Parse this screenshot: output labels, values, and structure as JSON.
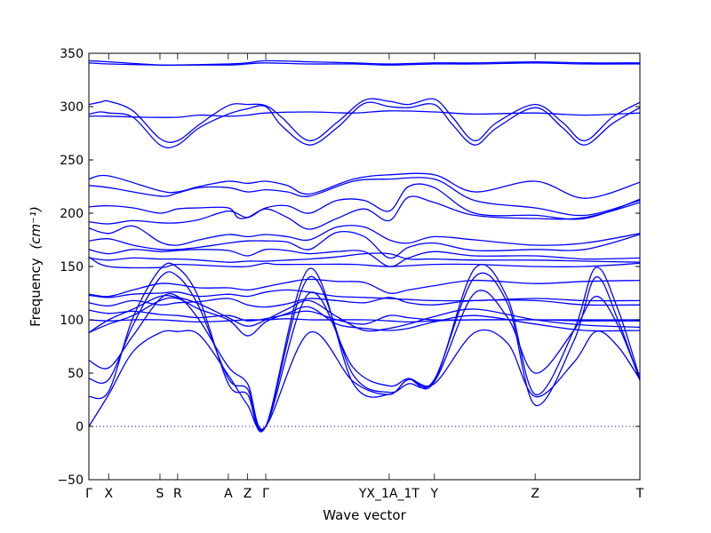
{
  "chart_data": {
    "type": "line",
    "title": "",
    "xlabel": "Wave vector",
    "ylabel": "Frequency",
    "ylabel_unit": "(cm⁻¹)",
    "ylim": [
      -50,
      350
    ],
    "yticks": [
      -50,
      0,
      50,
      100,
      150,
      200,
      250,
      300,
      350
    ],
    "x_range": [
      0,
      1
    ],
    "high_symmetry_points": [
      {
        "label": "Γ",
        "x": 0.0
      },
      {
        "label": "X",
        "x": 0.036
      },
      {
        "label": "S",
        "x": 0.129
      },
      {
        "label": "R",
        "x": 0.161
      },
      {
        "label": "A",
        "x": 0.253
      },
      {
        "label": "Z",
        "x": 0.288
      },
      {
        "label": "Γ",
        "x": 0.321
      },
      {
        "label": "YX_1A_1T",
        "x": 0.545
      },
      {
        "label": "Y",
        "x": 0.627
      },
      {
        "label": "Z",
        "x": 0.81
      },
      {
        "label": "T",
        "x": 1.0
      }
    ],
    "zero_line": {
      "y": 0,
      "style": "dotted"
    },
    "line_color": "#0000ff",
    "grid": false,
    "legend": "none",
    "series": [
      {
        "x": [
          0,
          0.036,
          0.129,
          0.161,
          0.253,
          0.288,
          0.321,
          0.4,
          0.48,
          0.545,
          0.627,
          0.7,
          0.81,
          0.9,
          1.0
        ],
        "values": [
          341,
          340,
          339,
          339,
          340,
          341,
          343,
          342,
          341,
          340,
          341,
          341,
          342,
          341,
          341
        ]
      },
      {
        "x": [
          0,
          0.036,
          0.129,
          0.161,
          0.253,
          0.288,
          0.321,
          0.4,
          0.48,
          0.545,
          0.627,
          0.7,
          0.81,
          0.9,
          1.0
        ],
        "values": [
          343,
          342,
          339,
          339,
          339,
          340,
          341,
          340,
          340,
          339,
          340,
          340,
          341,
          340,
          340
        ]
      },
      {
        "x": [
          0,
          0.02,
          0.036,
          0.08,
          0.129,
          0.161,
          0.2,
          0.253,
          0.288,
          0.321,
          0.35,
          0.4,
          0.45,
          0.5,
          0.545,
          0.58,
          0.627,
          0.66,
          0.7,
          0.74,
          0.81,
          0.86,
          0.9,
          0.95,
          1.0
        ],
        "values": [
          302,
          304,
          305,
          296,
          270,
          268,
          283,
          301,
          302,
          301,
          290,
          268,
          285,
          306,
          305,
          302,
          307,
          290,
          268,
          285,
          302,
          285,
          268,
          290,
          304
        ]
      },
      {
        "x": [
          0,
          0.02,
          0.036,
          0.08,
          0.129,
          0.161,
          0.2,
          0.253,
          0.288,
          0.321,
          0.35,
          0.4,
          0.45,
          0.5,
          0.545,
          0.58,
          0.627,
          0.66,
          0.7,
          0.74,
          0.81,
          0.86,
          0.9,
          0.95,
          1.0
        ],
        "values": [
          293,
          295,
          294,
          290,
          264,
          264,
          280,
          293,
          298,
          300,
          282,
          264,
          280,
          303,
          300,
          299,
          302,
          283,
          264,
          280,
          299,
          280,
          264,
          284,
          299
        ]
      },
      {
        "x": [
          0,
          0.036,
          0.1,
          0.161,
          0.2,
          0.253,
          0.288,
          0.321,
          0.4,
          0.48,
          0.545,
          0.627,
          0.7,
          0.81,
          0.9,
          1.0
        ],
        "values": [
          291,
          291,
          290,
          290,
          292,
          291,
          292,
          294,
          295,
          294,
          296,
          295,
          293,
          294,
          292,
          294
        ]
      },
      {
        "x": [
          0,
          0.036,
          0.129,
          0.161,
          0.2,
          0.253,
          0.288,
          0.321,
          0.36,
          0.4,
          0.48,
          0.545,
          0.627,
          0.7,
          0.81,
          0.9,
          1.0
        ],
        "values": [
          232,
          235,
          221,
          220,
          225,
          230,
          228,
          230,
          226,
          218,
          232,
          236,
          236,
          220,
          230,
          214,
          229
        ]
      },
      {
        "x": [
          0,
          0.036,
          0.129,
          0.161,
          0.2,
          0.253,
          0.288,
          0.321,
          0.36,
          0.4,
          0.48,
          0.545,
          0.627,
          0.7,
          0.81,
          0.9,
          1.0
        ],
        "values": [
          226,
          224,
          216,
          219,
          224,
          224,
          220,
          222,
          220,
          216,
          230,
          232,
          232,
          212,
          205,
          198,
          212
        ]
      },
      {
        "x": [
          0,
          0.036,
          0.08,
          0.129,
          0.161,
          0.2,
          0.253,
          0.27,
          0.288,
          0.321,
          0.36,
          0.4,
          0.45,
          0.5,
          0.545,
          0.58,
          0.627,
          0.7,
          0.81,
          0.9,
          1.0
        ],
        "values": [
          206,
          207,
          205,
          200,
          204,
          205,
          205,
          196,
          196,
          205,
          207,
          200,
          212,
          212,
          202,
          225,
          224,
          200,
          198,
          195,
          213
        ]
      },
      {
        "x": [
          0,
          0.036,
          0.08,
          0.129,
          0.161,
          0.2,
          0.253,
          0.288,
          0.321,
          0.36,
          0.4,
          0.45,
          0.5,
          0.545,
          0.58,
          0.627,
          0.7,
          0.81,
          0.9,
          1.0
        ],
        "values": [
          192,
          190,
          193,
          191,
          191,
          194,
          202,
          196,
          204,
          196,
          185,
          195,
          204,
          193,
          215,
          210,
          198,
          195,
          196,
          210
        ]
      },
      {
        "x": [
          0,
          0.036,
          0.08,
          0.129,
          0.161,
          0.2,
          0.253,
          0.288,
          0.321,
          0.36,
          0.4,
          0.45,
          0.5,
          0.545,
          0.58,
          0.627,
          0.7,
          0.81,
          0.9,
          1.0
        ],
        "values": [
          186,
          181,
          188,
          173,
          170,
          175,
          180,
          178,
          180,
          178,
          175,
          187,
          187,
          175,
          172,
          178,
          175,
          170,
          172,
          181
        ]
      },
      {
        "x": [
          0,
          0.036,
          0.08,
          0.129,
          0.161,
          0.2,
          0.253,
          0.288,
          0.321,
          0.36,
          0.4,
          0.45,
          0.5,
          0.545,
          0.58,
          0.627,
          0.7,
          0.81,
          0.9,
          1.0
        ],
        "values": [
          174,
          176,
          170,
          166,
          166,
          168,
          172,
          174,
          174,
          173,
          166,
          182,
          178,
          158,
          168,
          172,
          165,
          166,
          166,
          180
        ]
      },
      {
        "x": [
          0,
          0.036,
          0.08,
          0.129,
          0.161,
          0.2,
          0.253,
          0.288,
          0.321,
          0.36,
          0.4,
          0.45,
          0.5,
          0.545,
          0.58,
          0.627,
          0.7,
          0.81,
          0.9,
          1.0
        ],
        "values": [
          166,
          162,
          166,
          164,
          165,
          166,
          165,
          160,
          166,
          165,
          162,
          164,
          164,
          150,
          158,
          164,
          160,
          160,
          157,
          158
        ]
      },
      {
        "x": [
          0,
          0.036,
          0.08,
          0.129,
          0.161,
          0.2,
          0.253,
          0.288,
          0.321,
          0.36,
          0.4,
          0.45,
          0.5,
          0.545,
          0.58,
          0.627,
          0.7,
          0.81,
          0.9,
          1.0
        ],
        "values": [
          158,
          156,
          158,
          157,
          157,
          156,
          154,
          155,
          155,
          156,
          157,
          159,
          162,
          162,
          157,
          157,
          156,
          156,
          155,
          154
        ]
      },
      {
        "x": [
          0,
          0.036,
          0.13,
          0.161,
          0.253,
          0.288,
          0.321,
          0.34,
          0.4,
          0.48,
          0.545,
          0.627,
          0.7,
          0.81,
          0.9,
          1.0
        ],
        "values": [
          159,
          150,
          149,
          152,
          150,
          150,
          153,
          152,
          152,
          152,
          150,
          152,
          152,
          150,
          150,
          153
        ]
      },
      {
        "x": [
          0,
          0.036,
          0.08,
          0.129,
          0.161,
          0.2,
          0.253,
          0.288,
          0.321,
          0.36,
          0.4,
          0.45,
          0.5,
          0.545,
          0.58,
          0.627,
          0.7,
          0.81,
          0.9,
          1.0
        ],
        "values": [
          124,
          122,
          128,
          134,
          133,
          130,
          130,
          128,
          131,
          135,
          138,
          136,
          135,
          125,
          128,
          132,
          137,
          134,
          136,
          137
        ]
      },
      {
        "x": [
          0,
          0.036,
          0.08,
          0.129,
          0.161,
          0.2,
          0.253,
          0.288,
          0.321,
          0.36,
          0.4,
          0.45,
          0.5,
          0.545,
          0.58,
          0.627,
          0.7,
          0.81,
          0.9,
          1.0
        ],
        "values": [
          123,
          121,
          124,
          125,
          126,
          122,
          124,
          122,
          126,
          128,
          126,
          122,
          121,
          120,
          119,
          118,
          118,
          120,
          118,
          118
        ]
      },
      {
        "x": [
          0,
          0.036,
          0.08,
          0.129,
          0.161,
          0.2,
          0.253,
          0.288,
          0.321,
          0.36,
          0.4,
          0.45,
          0.5,
          0.545,
          0.58,
          0.627,
          0.7,
          0.81,
          0.9,
          1.0
        ],
        "values": [
          116,
          113,
          118,
          114,
          116,
          117,
          120,
          114,
          112,
          115,
          120,
          118,
          116,
          121,
          116,
          114,
          118,
          118,
          114,
          114
        ]
      },
      {
        "x": [
          0,
          0.036,
          0.08,
          0.129,
          0.161,
          0.2,
          0.253,
          0.288,
          0.321,
          0.36,
          0.4,
          0.45,
          0.5,
          0.545,
          0.58,
          0.627,
          0.7,
          0.81,
          0.9,
          1.0
        ],
        "values": [
          109,
          106,
          108,
          105,
          104,
          102,
          104,
          99,
          101,
          105,
          108,
          100,
          96,
          104,
          102,
          100,
          100,
          100,
          100,
          100
        ]
      },
      {
        "x": [
          0,
          0.036,
          0.08,
          0.129,
          0.161,
          0.2,
          0.253,
          0.288,
          0.321,
          0.36,
          0.4,
          0.45,
          0.5,
          0.545,
          0.58,
          0.627,
          0.7,
          0.81,
          0.9,
          1.0
        ],
        "values": [
          100,
          99,
          100,
          100,
          99,
          98,
          99,
          100,
          100,
          101,
          100,
          100,
          100,
          99,
          98,
          99,
          100,
          100,
          99,
          99
        ]
      },
      {
        "x": [
          0,
          0.036,
          0.08,
          0.129,
          0.161,
          0.2,
          0.253,
          0.288,
          0.321,
          0.36,
          0.4,
          0.45,
          0.5,
          0.545,
          0.58,
          0.627,
          0.7,
          0.81,
          0.9,
          1.0
        ],
        "values": [
          88,
          100,
          110,
          122,
          121,
          115,
          102,
          94,
          100,
          110,
          118,
          103,
          90,
          92,
          96,
          103,
          110,
          100,
          95,
          93
        ]
      },
      {
        "x": [
          0,
          0.036,
          0.08,
          0.129,
          0.161,
          0.2,
          0.253,
          0.288,
          0.321,
          0.36,
          0.4,
          0.45,
          0.5,
          0.545,
          0.58,
          0.627,
          0.7,
          0.81,
          0.9,
          1.0
        ],
        "values": [
          88,
          96,
          104,
          118,
          120,
          110,
          100,
          85,
          98,
          106,
          112,
          96,
          92,
          90,
          92,
          98,
          104,
          96,
          90,
          90
        ]
      },
      {
        "x": [
          0,
          0.036,
          0.08,
          0.13,
          0.161,
          0.2,
          0.253,
          0.288,
          0.321,
          0.4,
          0.48,
          0.545,
          0.58,
          0.627,
          0.7,
          0.76,
          0.81,
          0.88,
          0.92,
          0.96,
          1.0
        ],
        "values": [
          28,
          33,
          102,
          148,
          149,
          120,
          40,
          30,
          0,
          148,
          40,
          30,
          44,
          42,
          148,
          120,
          30,
          90,
          149,
          110,
          45
        ]
      },
      {
        "x": [
          0,
          0.036,
          0.08,
          0.13,
          0.161,
          0.2,
          0.253,
          0.288,
          0.321,
          0.4,
          0.48,
          0.545,
          0.58,
          0.627,
          0.7,
          0.76,
          0.81,
          0.88,
          0.92,
          0.96,
          1.0
        ],
        "values": [
          45,
          44,
          95,
          140,
          141,
          112,
          45,
          35,
          0,
          140,
          48,
          32,
          40,
          44,
          140,
          115,
          20,
          80,
          140,
          100,
          43
        ]
      },
      {
        "x": [
          0,
          0.036,
          0.08,
          0.13,
          0.161,
          0.2,
          0.253,
          0.288,
          0.321,
          0.4,
          0.48,
          0.545,
          0.58,
          0.627,
          0.7,
          0.76,
          0.81,
          0.88,
          0.92,
          0.96,
          1.0
        ],
        "values": [
          62,
          55,
          85,
          120,
          122,
          100,
          56,
          40,
          0,
          125,
          55,
          38,
          45,
          42,
          125,
          102,
          50,
          90,
          122,
          95,
          44
        ]
      },
      {
        "x": [
          0,
          0.036,
          0.08,
          0.13,
          0.161,
          0.2,
          0.253,
          0.288,
          0.321,
          0.4,
          0.48,
          0.545,
          0.58,
          0.627,
          0.7,
          0.76,
          0.81,
          0.88,
          0.92,
          0.96,
          1.0
        ],
        "values": [
          0,
          30,
          70,
          88,
          89,
          86,
          48,
          20,
          0,
          88,
          42,
          30,
          44,
          40,
          88,
          78,
          28,
          60,
          89,
          75,
          44
        ]
      }
    ]
  }
}
